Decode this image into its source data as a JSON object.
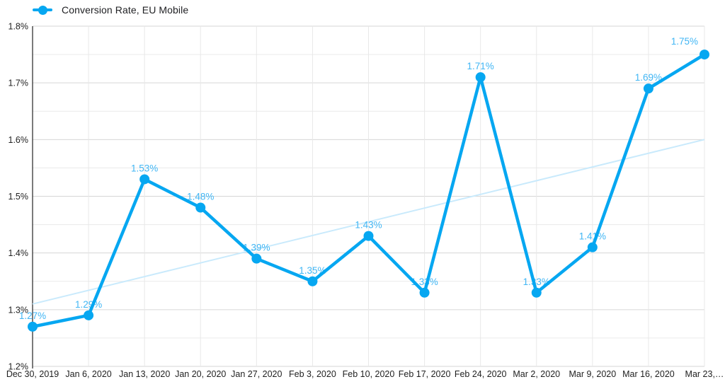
{
  "legend": {
    "label": "Conversion Rate, EU Mobile",
    "marker": "line-dot-icon"
  },
  "chart_data": {
    "type": "line",
    "title": "",
    "legend_position": "top-left",
    "grid": "on",
    "categories": [
      "Dec 30, 2019",
      "Jan 6, 2020",
      "Jan 13, 2020",
      "Jan 20, 2020",
      "Jan 27, 2020",
      "Feb 3, 2020",
      "Feb 10, 2020",
      "Feb 17, 2020",
      "Feb 24, 2020",
      "Mar 2, 2020",
      "Mar 9, 2020",
      "Mar 16, 2020",
      "Mar 23,…"
    ],
    "series": [
      {
        "name": "Conversion Rate, EU Mobile",
        "values": [
          1.27,
          1.29,
          1.53,
          1.48,
          1.39,
          1.35,
          1.43,
          1.33,
          1.71,
          1.33,
          1.41,
          1.69,
          1.75
        ],
        "data_labels": [
          "1.27%",
          "1.29%",
          "1.53%",
          "1.48%",
          "1.39%",
          "1.35%",
          "1.43%",
          "1.33%",
          "1.71%",
          "1.33%",
          "1.41%",
          "1.69%",
          "1.75%"
        ]
      }
    ],
    "ylim": [
      1.2,
      1.8
    ],
    "ylabel": "",
    "xlabel": "",
    "y_ticks": [
      {
        "value": 1.8,
        "label": "1.8%"
      },
      {
        "value": 1.7,
        "label": "1.7%"
      },
      {
        "value": 1.6,
        "label": "1.6%"
      },
      {
        "value": 1.5,
        "label": "1.5%"
      },
      {
        "value": 1.4,
        "label": "1.4%"
      },
      {
        "value": 1.3,
        "label": "1.3%"
      },
      {
        "value": 1.2,
        "label": "1.2%"
      }
    ],
    "minor_gridline_step": 0.05,
    "trendline": {
      "start_value": 1.31,
      "end_value": 1.6
    },
    "colors": {
      "series": "#06a7f1",
      "data_label": "#41b6f4",
      "trendline": "#c9eafc",
      "grid_major": "#d6d6d6",
      "grid_minor": "#eaeaea",
      "grid_vertical": "#e8e8e8",
      "axis_line": "#222222",
      "tick_label": "#1f1f1f",
      "legend_text": "#202124"
    }
  }
}
